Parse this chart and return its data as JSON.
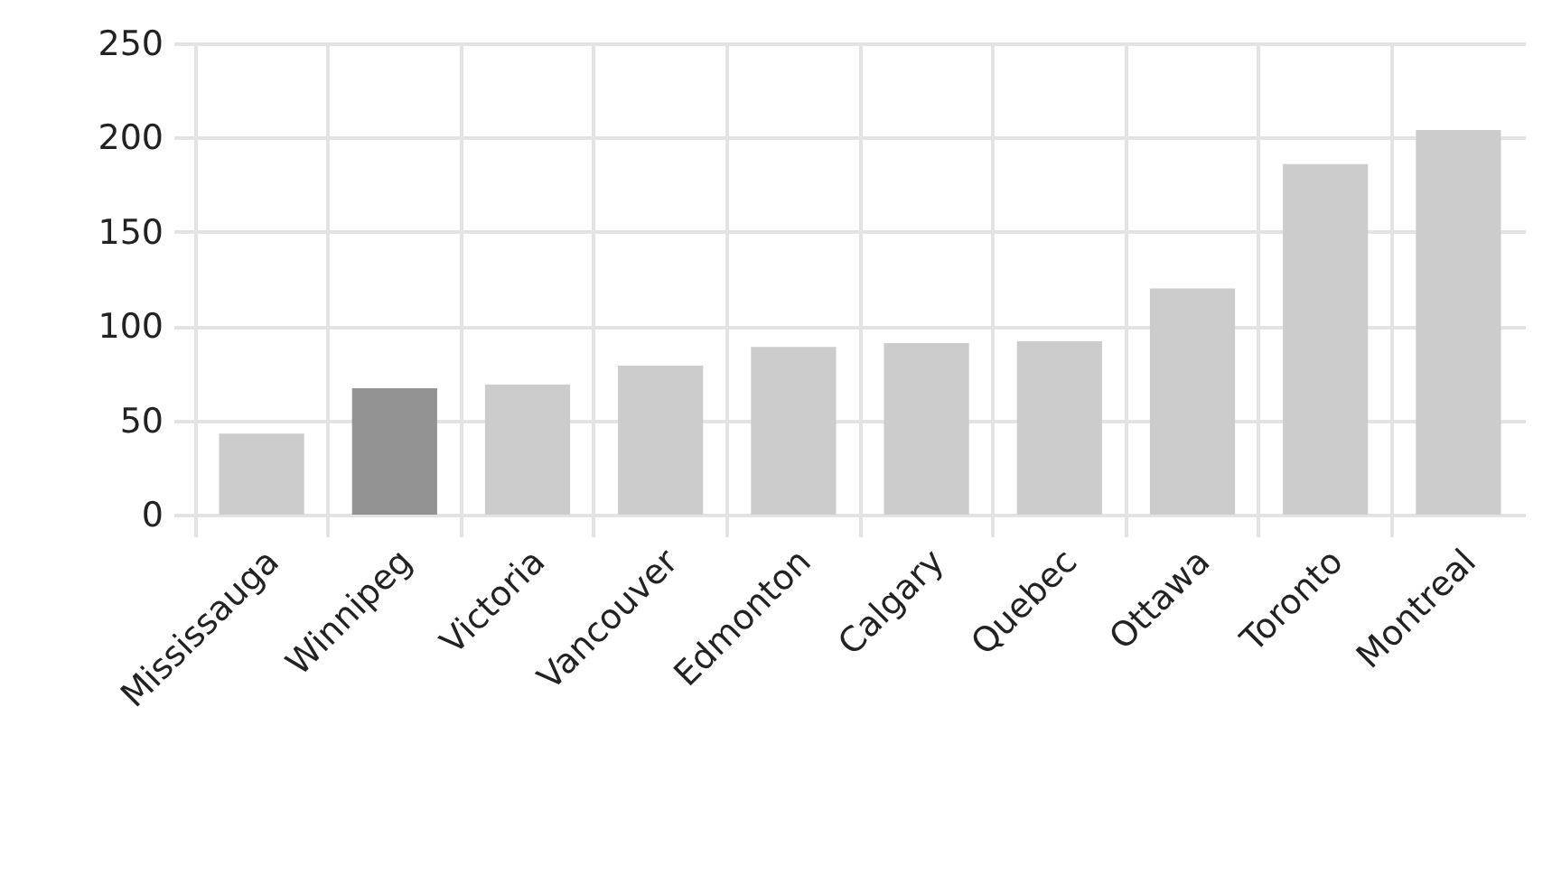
{
  "chart_data": {
    "type": "bar",
    "categories": [
      "Mississauga",
      "Winnipeg",
      "Victoria",
      "Vancouver",
      "Edmonton",
      "Calgary",
      "Quebec",
      "Ottawa",
      "Toronto",
      "Montreal"
    ],
    "values": [
      43,
      67,
      69,
      79,
      89,
      91,
      92,
      120,
      186,
      204
    ],
    "colors": [
      "#cccccc",
      "#939393",
      "#cccccc",
      "#cccccc",
      "#cccccc",
      "#cccccc",
      "#cccccc",
      "#cccccc",
      "#cccccc",
      "#cccccc"
    ],
    "ylim": [
      0,
      250
    ],
    "yticks": [
      0,
      50,
      100,
      150,
      200,
      250
    ],
    "grid": true
  }
}
